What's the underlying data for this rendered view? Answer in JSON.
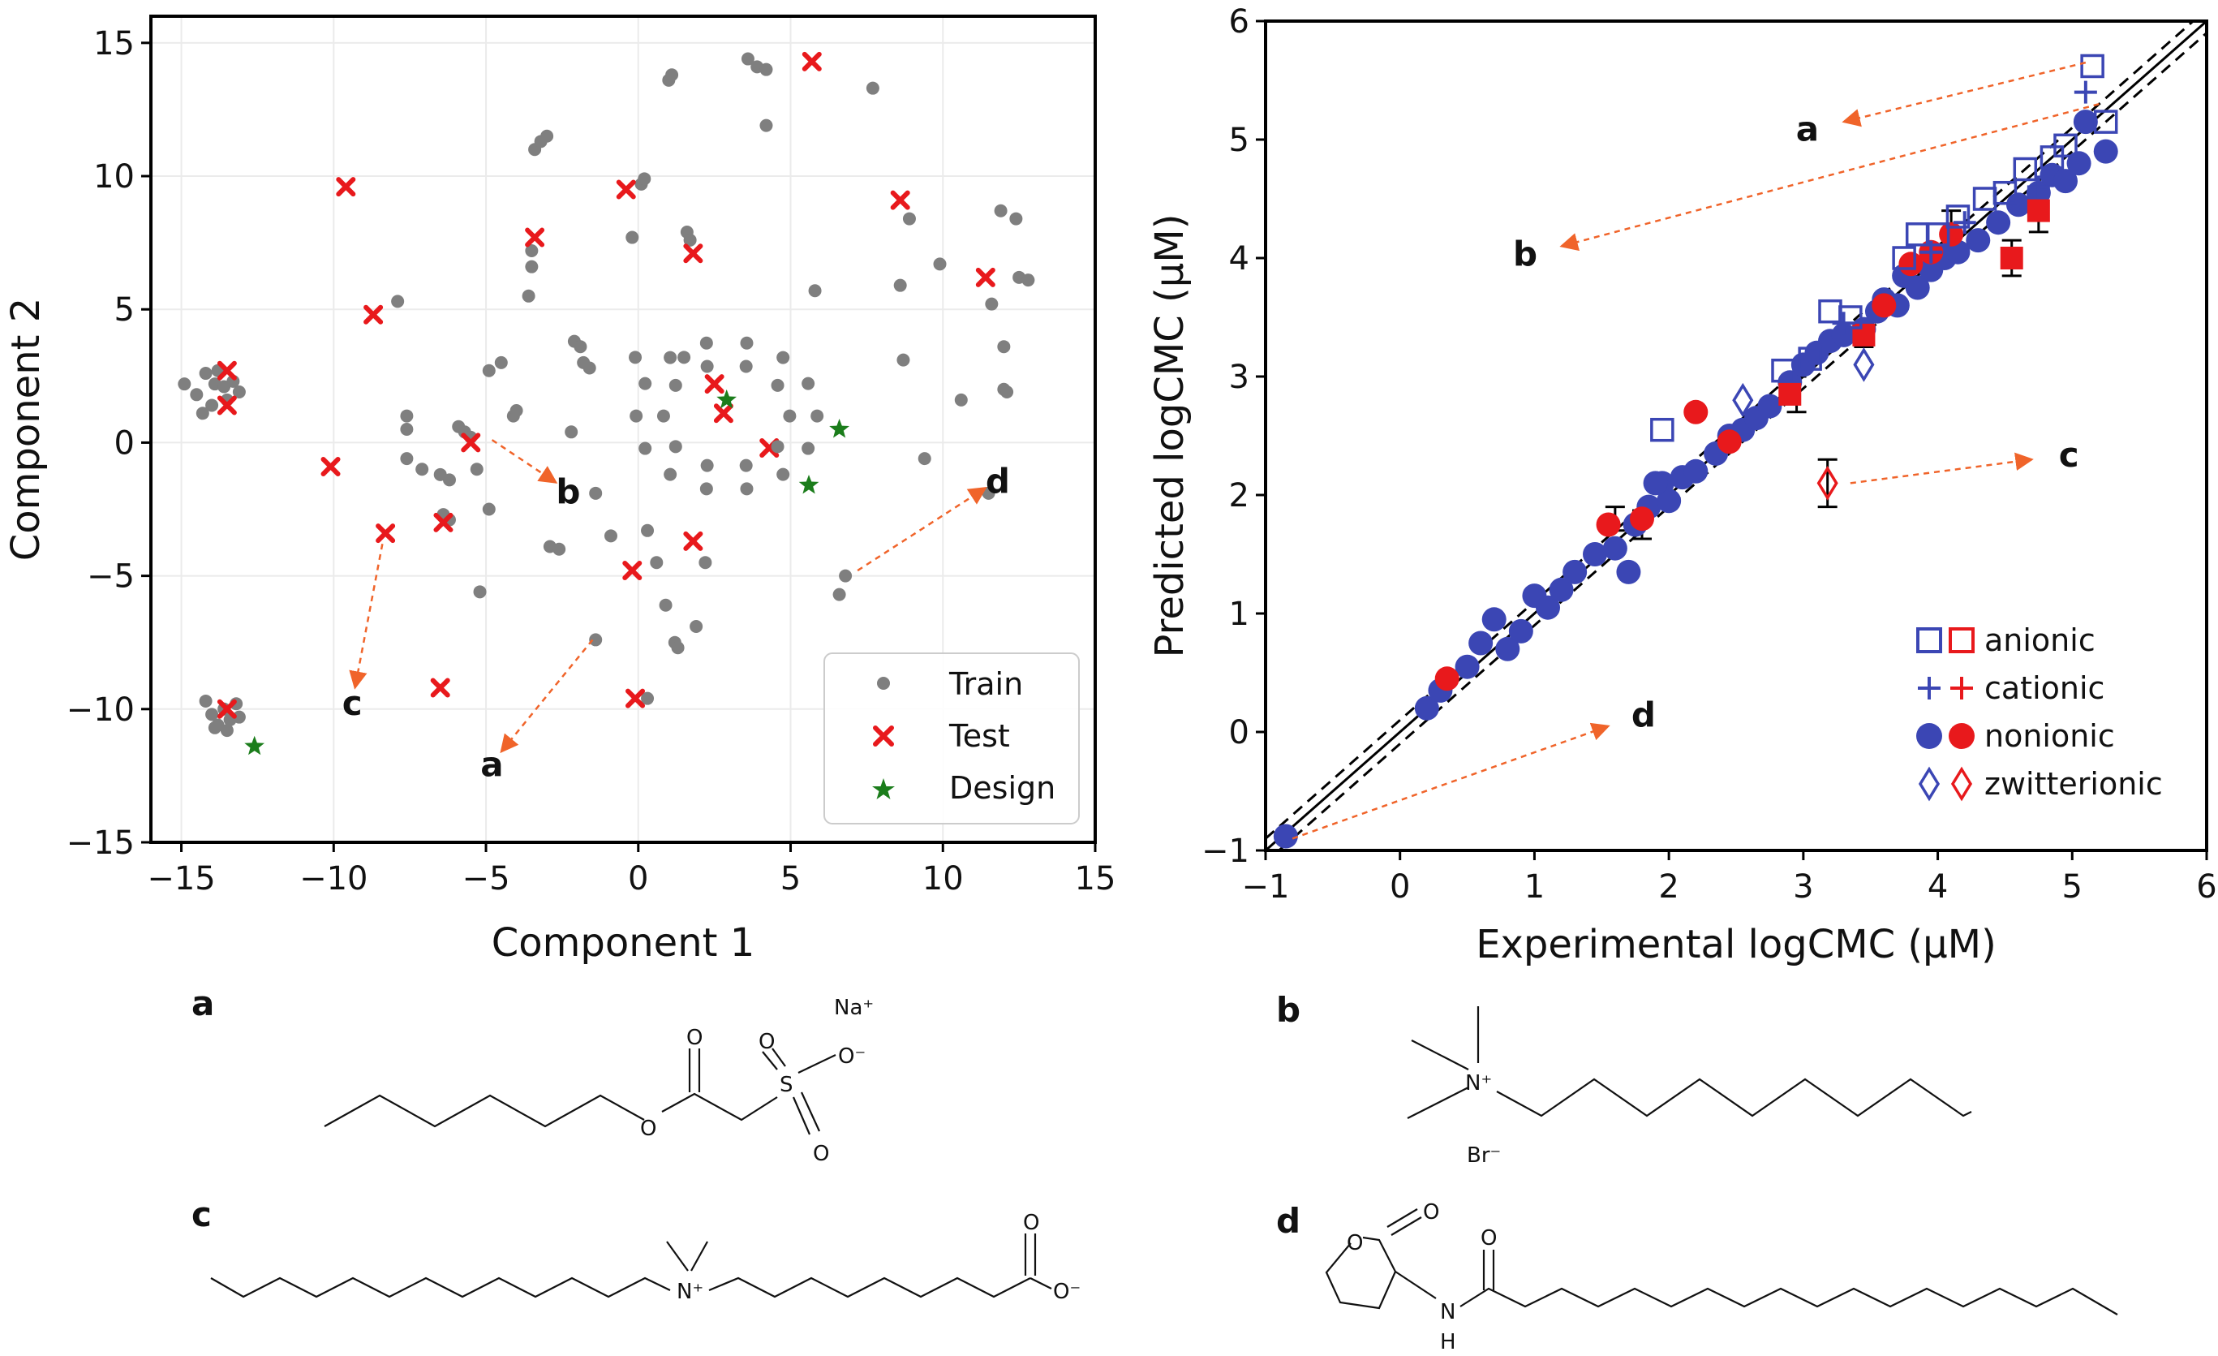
{
  "colors": {
    "train": "#7f7f7f",
    "test": "#e8191c",
    "design": "#1b7d1b",
    "blue": "#3b46b4",
    "red": "#e8191c",
    "arrow": "#f0642a"
  },
  "chart_data": [
    {
      "type": "scatter",
      "xlabel": "Component 1",
      "ylabel": "Component 2",
      "xlim": [
        -16,
        15
      ],
      "ylim": [
        -15,
        16
      ],
      "xticks": [
        "−15",
        "−10",
        "−5",
        "0",
        "5",
        "10",
        "15"
      ],
      "yticks": [
        "−15",
        "−10",
        "−5",
        "0",
        "5",
        "10",
        "15"
      ],
      "grid": true,
      "legend": {
        "placement": "bottom-right",
        "entries": [
          "Train",
          "Test",
          "Design"
        ]
      },
      "series": [
        {
          "name": "Train",
          "points": [
            [
              -14.9,
              2.2
            ],
            [
              -14.5,
              1.8
            ],
            [
              -14.2,
              2.6
            ],
            [
              -14,
              1.4
            ],
            [
              -13.9,
              2.2
            ],
            [
              -13.8,
              2.7
            ],
            [
              -13.6,
              2.1
            ],
            [
              -13.5,
              1.6
            ],
            [
              -13.3,
              2.3
            ],
            [
              -13.1,
              1.9
            ],
            [
              -14.3,
              1.1
            ],
            [
              -14.2,
              -9.7
            ],
            [
              -14,
              -10.2
            ],
            [
              -13.8,
              -10.6
            ],
            [
              -13.6,
              -10.0
            ],
            [
              -13.4,
              -10.4
            ],
            [
              -13.2,
              -9.8
            ],
            [
              -13.1,
              -10.3
            ],
            [
              -13.9,
              -10.7
            ],
            [
              -13.5,
              -10.8
            ],
            [
              -7.9,
              5.3
            ],
            [
              -7.6,
              1.0
            ],
            [
              -7.6,
              0.5
            ],
            [
              -7.6,
              -0.6
            ],
            [
              -7.1,
              -1.0
            ],
            [
              -6.5,
              -1.2
            ],
            [
              -6.4,
              -2.7
            ],
            [
              -6.2,
              -1.4
            ],
            [
              -6.2,
              -2.9
            ],
            [
              -5.9,
              0.6
            ],
            [
              -5.7,
              0.4
            ],
            [
              -5.5,
              0.2
            ],
            [
              -5.3,
              -1.0
            ],
            [
              -5.2,
              -5.6
            ],
            [
              -4.9,
              2.7
            ],
            [
              -4.5,
              3.0
            ],
            [
              -4.9,
              -2.5
            ],
            [
              -4.1,
              1.0
            ],
            [
              -4.0,
              1.2
            ],
            [
              -3.6,
              5.5
            ],
            [
              -3.5,
              6.6
            ],
            [
              -3.5,
              7.2
            ],
            [
              -3.4,
              11.0
            ],
            [
              -3.2,
              11.3
            ],
            [
              -3.0,
              11.5
            ],
            [
              -2.9,
              -3.9
            ],
            [
              -2.6,
              -4.0
            ],
            [
              -2.2,
              0.4
            ],
            [
              -2.1,
              3.8
            ],
            [
              -1.9,
              3.6
            ],
            [
              -1.8,
              3.0
            ],
            [
              -1.6,
              2.8
            ],
            [
              -1.4,
              -1.9
            ],
            [
              -1.4,
              -7.4
            ],
            [
              -0.9,
              -3.5
            ],
            [
              -0.2,
              7.7
            ],
            [
              -0.1,
              3.2
            ],
            [
              0.1,
              9.7
            ],
            [
              0.2,
              9.9
            ],
            [
              0.3,
              -3.3
            ],
            [
              0.3,
              -9.6
            ],
            [
              0.6,
              -4.5
            ],
            [
              0.9,
              -6.1
            ],
            [
              1.0,
              13.6
            ],
            [
              1.1,
              13.8
            ],
            [
              1.2,
              -7.5
            ],
            [
              1.3,
              -7.7
            ],
            [
              1.5,
              3.2
            ],
            [
              1.6,
              7.9
            ],
            [
              1.7,
              7.6
            ],
            [
              1.9,
              -6.9
            ],
            [
              2.2,
              -4.5
            ],
            [
              3.6,
              14.4
            ],
            [
              3.9,
              14.1
            ],
            [
              4.2,
              14.0
            ],
            [
              4.2,
              11.9
            ],
            [
              5.8,
              5.7
            ],
            [
              7.7,
              13.3
            ],
            [
              8.6,
              5.9
            ],
            [
              8.7,
              3.1
            ],
            [
              8.9,
              8.4
            ],
            [
              9.4,
              -0.6
            ],
            [
              9.9,
              6.7
            ],
            [
              10.6,
              1.6
            ],
            [
              11.5,
              -1.9
            ],
            [
              11.6,
              5.2
            ],
            [
              11.9,
              8.7
            ],
            [
              12.0,
              3.6
            ],
            [
              12.0,
              2.0
            ],
            [
              12.1,
              1.9
            ],
            [
              12.4,
              8.4
            ],
            [
              12.5,
              6.2
            ],
            [
              12.8,
              6.1
            ],
            [
              6.8,
              -5.0
            ],
            [
              6.6,
              -5.7
            ]
          ]
        },
        {
          "name": "Test",
          "points": [
            [
              -13.5,
              2.7
            ],
            [
              -13.5,
              1.4
            ],
            [
              -13.5,
              -10.0
            ],
            [
              -10.1,
              -0.9
            ],
            [
              -9.6,
              9.6
            ],
            [
              -8.7,
              4.8
            ],
            [
              -8.3,
              -3.4
            ],
            [
              -6.4,
              -3.0
            ],
            [
              -6.5,
              -9.2
            ],
            [
              -5.5,
              0.0
            ],
            [
              -3.4,
              7.7
            ],
            [
              -0.4,
              9.5
            ],
            [
              -0.2,
              -4.8
            ],
            [
              -0.1,
              -9.6
            ],
            [
              1.8,
              7.1
            ],
            [
              1.8,
              -3.7
            ],
            [
              2.5,
              2.2
            ],
            [
              2.8,
              1.1
            ],
            [
              4.3,
              -0.2
            ],
            [
              5.7,
              14.3
            ],
            [
              8.6,
              9.1
            ],
            [
              11.4,
              6.2
            ]
          ]
        },
        {
          "name": "Design",
          "points": [
            [
              2.9,
              1.6
            ],
            [
              5.6,
              -1.6
            ],
            [
              6.6,
              0.5
            ],
            [
              -12.6,
              -11.4
            ]
          ]
        }
      ],
      "annotations": [
        {
          "label": "a",
          "from": [
            -1.5,
            -7.4
          ],
          "to": [
            -4.5,
            -11.6
          ]
        },
        {
          "label": "b",
          "from": [
            -4.8,
            0.1
          ],
          "to": [
            -2.7,
            -1.5
          ]
        },
        {
          "label": "c",
          "from": [
            -8.4,
            -3.8
          ],
          "to": [
            -9.3,
            -9.2
          ]
        },
        {
          "label": "d",
          "from": [
            7.2,
            -4.8
          ],
          "to": [
            11.4,
            -1.7
          ]
        }
      ]
    },
    {
      "type": "scatter",
      "xlabel": "Experimental logCMC (μM)",
      "ylabel": "Predicted logCMC (μM)",
      "xlim": [
        -1,
        6
      ],
      "ylim": [
        -1,
        6
      ],
      "xticks": [
        "−1",
        "0",
        "1",
        "2",
        "3",
        "4",
        "5",
        "6"
      ],
      "yticks": [
        "−1",
        "0",
        "1",
        "2",
        "3",
        "4",
        "5",
        "6"
      ],
      "grid": false,
      "lines": [
        "y = x (solid)",
        "y = x ± 0.1 (dashed)"
      ],
      "legend": {
        "placement": "bottom-right",
        "entries": [
          "anionic",
          "cationic",
          "nonionic",
          "zwitterionic"
        ]
      },
      "series": [
        {
          "name": "anionic",
          "color": "blue",
          "marker": "open-square",
          "points": [
            [
              1.95,
              2.55
            ],
            [
              2.85,
              3.05
            ],
            [
              3.05,
              3.15
            ],
            [
              3.2,
              3.55
            ],
            [
              3.35,
              3.5
            ],
            [
              3.75,
              4.0
            ],
            [
              3.85,
              4.2
            ],
            [
              4.0,
              4.2
            ],
            [
              4.15,
              4.35
            ],
            [
              4.35,
              4.5
            ],
            [
              4.5,
              4.55
            ],
            [
              4.65,
              4.75
            ],
            [
              4.85,
              4.85
            ],
            [
              4.95,
              4.95
            ],
            [
              5.25,
              5.15
            ],
            [
              5.15,
              5.62
            ]
          ]
        },
        {
          "name": "cationic",
          "color": "blue",
          "marker": "plus",
          "points": [
            [
              3.95,
              4.05
            ],
            [
              4.2,
              4.3
            ],
            [
              4.75,
              4.6
            ],
            [
              5.1,
              5.4
            ],
            [
              3.3,
              3.45
            ]
          ]
        },
        {
          "name": "nonionic",
          "color": "blue",
          "marker": "filled-circle",
          "points": [
            [
              -0.85,
              -0.88
            ],
            [
              0.2,
              0.2
            ],
            [
              0.3,
              0.35
            ],
            [
              0.5,
              0.55
            ],
            [
              0.6,
              0.75
            ],
            [
              0.7,
              0.95
            ],
            [
              0.8,
              0.7
            ],
            [
              0.9,
              0.85
            ],
            [
              1.0,
              1.15
            ],
            [
              1.1,
              1.05
            ],
            [
              1.2,
              1.2
            ],
            [
              1.3,
              1.35
            ],
            [
              1.45,
              1.5
            ],
            [
              1.6,
              1.55
            ],
            [
              1.7,
              1.35
            ],
            [
              1.75,
              1.75
            ],
            [
              1.85,
              1.9
            ],
            [
              1.95,
              2.1
            ],
            [
              2.0,
              1.95
            ],
            [
              2.1,
              2.15
            ],
            [
              2.2,
              2.2
            ],
            [
              2.35,
              2.35
            ],
            [
              2.45,
              2.5
            ],
            [
              2.55,
              2.55
            ],
            [
              2.65,
              2.65
            ],
            [
              2.75,
              2.75
            ],
            [
              2.9,
              2.95
            ],
            [
              3.0,
              3.1
            ],
            [
              3.1,
              3.2
            ],
            [
              3.2,
              3.3
            ],
            [
              3.3,
              3.35
            ],
            [
              3.45,
              3.4
            ],
            [
              3.55,
              3.55
            ],
            [
              3.6,
              3.65
            ],
            [
              3.7,
              3.6
            ],
            [
              3.75,
              3.85
            ],
            [
              3.85,
              3.75
            ],
            [
              3.95,
              3.9
            ],
            [
              4.05,
              4.0
            ],
            [
              4.15,
              4.05
            ],
            [
              4.3,
              4.15
            ],
            [
              4.45,
              4.3
            ],
            [
              4.6,
              4.45
            ],
            [
              4.75,
              4.55
            ],
            [
              4.85,
              4.7
            ],
            [
              4.95,
              4.65
            ],
            [
              5.05,
              4.8
            ],
            [
              5.1,
              5.15
            ],
            [
              5.25,
              4.9
            ],
            [
              1.9,
              2.1
            ]
          ]
        },
        {
          "name": "nonionic",
          "color": "red",
          "marker": "filled-circle",
          "points": [
            [
              0.35,
              0.45
            ],
            [
              1.55,
              1.75
            ],
            [
              1.8,
              1.8
            ],
            [
              2.2,
              2.7
            ],
            [
              2.45,
              2.45
            ],
            [
              3.6,
              3.6
            ],
            [
              3.8,
              3.95
            ],
            [
              3.95,
              4.05
            ],
            [
              4.1,
              4.2
            ]
          ]
        },
        {
          "name": "anionic",
          "color": "red",
          "marker": "filled-square",
          "points": [
            [
              2.9,
              2.85
            ],
            [
              3.45,
              3.35
            ],
            [
              4.55,
              4.0
            ],
            [
              4.75,
              4.4
            ]
          ]
        },
        {
          "name": "zwitterionic",
          "color": "blue",
          "marker": "open-diamond",
          "points": [
            [
              3.45,
              3.1
            ],
            [
              2.55,
              2.8
            ]
          ]
        },
        {
          "name": "zwitterionic",
          "color": "red",
          "marker": "open-diamond",
          "points": [
            [
              3.18,
              2.1
            ]
          ]
        }
      ],
      "error_bars": [
        {
          "x": 3.18,
          "y": 2.1,
          "err": 0.2
        },
        {
          "x": 1.6,
          "y": 1.8,
          "err": 0.1
        },
        {
          "x": 1.8,
          "y": 1.75,
          "err": 0.12
        },
        {
          "x": 2.95,
          "y": 2.85,
          "err": 0.15
        },
        {
          "x": 3.45,
          "y": 3.35,
          "err": 0.1
        },
        {
          "x": 4.55,
          "y": 4.0,
          "err": 0.15
        },
        {
          "x": 4.75,
          "y": 4.4,
          "err": 0.18
        },
        {
          "x": 4.1,
          "y": 4.25,
          "err": 0.15
        }
      ],
      "annotations": [
        {
          "label": "a",
          "from": [
            5.1,
            5.65
          ],
          "to": [
            3.3,
            5.15
          ]
        },
        {
          "label": "b",
          "from": [
            5.2,
            5.3
          ],
          "to": [
            1.2,
            4.1
          ]
        },
        {
          "label": "c",
          "from": [
            3.35,
            2.1
          ],
          "to": [
            4.7,
            2.3
          ]
        },
        {
          "label": "d",
          "from": [
            -0.8,
            -0.9
          ],
          "to": [
            1.55,
            0.05
          ]
        }
      ]
    }
  ],
  "molecules": {
    "a": {
      "letter": "a",
      "counterion": "Na⁺",
      "atoms": [
        "O",
        "O",
        "S",
        "O",
        "O",
        "O⁻"
      ]
    },
    "b": {
      "letter": "b",
      "atoms": [
        "N⁺",
        "Br⁻"
      ]
    },
    "c": {
      "letter": "c",
      "atoms": [
        "N⁺",
        "O",
        "O⁻"
      ]
    },
    "d": {
      "letter": "d",
      "atoms": [
        "O",
        "O",
        "O",
        "N",
        "H"
      ]
    }
  }
}
